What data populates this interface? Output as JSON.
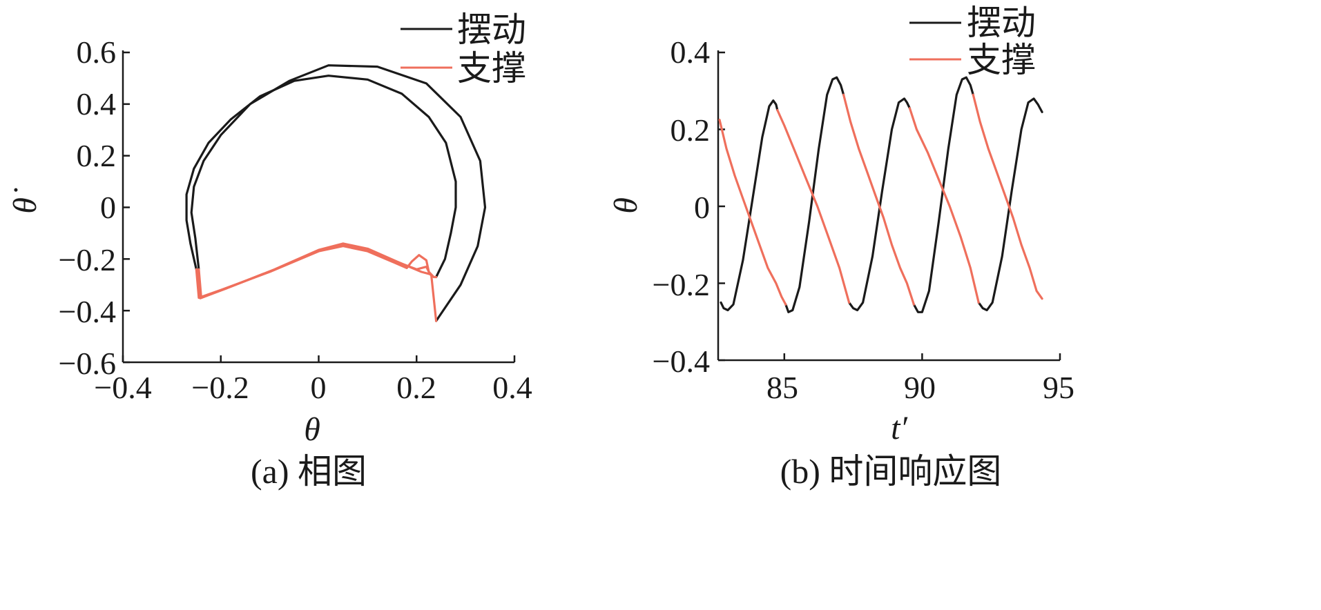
{
  "figure": {
    "captions": [
      "(a) 相图",
      "(b) 时间响应图"
    ]
  },
  "colors": {
    "swing": "#1a1a1a",
    "support": "#ef6f5c",
    "axis": "#1a1a1a"
  },
  "chart_data": [
    {
      "type": "line",
      "subplot": "a",
      "caption": "(a) 相图",
      "xlabel": "θ",
      "ylabel": "θ̇",
      "xlim": [
        -0.4,
        0.4
      ],
      "ylim": [
        -0.6,
        0.6
      ],
      "xticks": [
        -0.4,
        -0.2,
        0,
        0.2,
        0.4
      ],
      "xtick_labels": [
        "−0.4",
        "−0.2",
        "0",
        "0.2",
        "0.4"
      ],
      "yticks": [
        0.6,
        0.4,
        0.2,
        0,
        -0.2,
        -0.4,
        -0.6
      ],
      "ytick_labels": [
        "0.6",
        "0.4",
        "0.2",
        "0",
        "−0.2",
        "−0.4",
        "−0.6"
      ],
      "legend": {
        "position": "top-right",
        "entries": [
          "摆动",
          "支撑"
        ]
      },
      "grid": false,
      "series": [
        {
          "name": "摆动",
          "color": "#1a1a1a",
          "segments": [
            [
              [
                -0.25,
                -0.24
              ],
              [
                -0.262,
                -0.14
              ],
              [
                -0.27,
                -0.05
              ],
              [
                -0.27,
                0.05
              ],
              [
                -0.255,
                0.15
              ],
              [
                -0.225,
                0.25
              ],
              [
                -0.18,
                0.34
              ],
              [
                -0.12,
                0.43
              ],
              [
                -0.05,
                0.49
              ],
              [
                0.02,
                0.51
              ],
              [
                0.1,
                0.495
              ],
              [
                0.17,
                0.44
              ],
              [
                0.225,
                0.35
              ],
              [
                0.26,
                0.25
              ],
              [
                0.28,
                0.1
              ],
              [
                0.28,
                0.0
              ],
              [
                0.27,
                -0.1
              ],
              [
                0.258,
                -0.2
              ],
              [
                0.24,
                -0.27
              ]
            ],
            [
              [
                -0.245,
                -0.24
              ],
              [
                -0.252,
                -0.12
              ],
              [
                -0.26,
                -0.02
              ],
              [
                -0.255,
                0.08
              ],
              [
                -0.235,
                0.18
              ],
              [
                -0.2,
                0.28
              ],
              [
                -0.14,
                0.4
              ],
              [
                -0.06,
                0.49
              ],
              [
                0.02,
                0.55
              ],
              [
                0.12,
                0.545
              ],
              [
                0.22,
                0.48
              ],
              [
                0.29,
                0.35
              ],
              [
                0.33,
                0.18
              ],
              [
                0.34,
                0.0
              ],
              [
                0.325,
                -0.15
              ],
              [
                0.29,
                -0.3
              ],
              [
                0.24,
                -0.44
              ]
            ]
          ]
        },
        {
          "name": "支撑",
          "color": "#ef6f5c",
          "segments": [
            [
              [
                -0.25,
                -0.24
              ],
              [
                -0.245,
                -0.35
              ],
              [
                -0.2,
                -0.32
              ],
              [
                -0.1,
                -0.25
              ],
              [
                0.0,
                -0.17
              ],
              [
                0.05,
                -0.15
              ],
              [
                0.1,
                -0.17
              ],
              [
                0.15,
                -0.21
              ],
              [
                0.18,
                -0.235
              ],
              [
                0.19,
                -0.21
              ],
              [
                0.205,
                -0.185
              ],
              [
                0.22,
                -0.205
              ],
              [
                0.225,
                -0.25
              ],
              [
                0.235,
                -0.27
              ],
              [
                0.24,
                -0.27
              ]
            ],
            [
              [
                -0.245,
                -0.24
              ],
              [
                -0.24,
                -0.35
              ],
              [
                -0.19,
                -0.315
              ],
              [
                -0.09,
                -0.24
              ],
              [
                0.0,
                -0.165
              ],
              [
                0.05,
                -0.14
              ],
              [
                0.1,
                -0.16
              ],
              [
                0.16,
                -0.21
              ],
              [
                0.21,
                -0.25
              ],
              [
                0.23,
                -0.26
              ],
              [
                0.24,
                -0.44
              ]
            ],
            [
              [
                -0.248,
                -0.242
              ],
              [
                -0.242,
                -0.352
              ],
              [
                -0.195,
                -0.318
              ],
              [
                -0.095,
                -0.245
              ],
              [
                0.0,
                -0.168
              ],
              [
                0.05,
                -0.145
              ],
              [
                0.1,
                -0.165
              ],
              [
                0.155,
                -0.208
              ],
              [
                0.2,
                -0.24
              ],
              [
                0.22,
                -0.23
              ],
              [
                0.228,
                -0.26
              ]
            ]
          ]
        }
      ]
    },
    {
      "type": "line",
      "subplot": "b",
      "caption": "(b) 时间响应图",
      "xlabel": "t′",
      "ylabel": "θ",
      "xlim": [
        82.6,
        95
      ],
      "ylim": [
        -0.4,
        0.4
      ],
      "xticks": [
        85,
        90,
        95
      ],
      "xtick_labels": [
        "85",
        "90",
        "95"
      ],
      "yticks": [
        0.4,
        0.2,
        0,
        -0.2,
        -0.4
      ],
      "ytick_labels": [
        "0.4",
        "0.2",
        "0",
        "−0.2",
        "−0.4"
      ],
      "legend": {
        "position": "top-right",
        "entries": [
          "摆动",
          "支撑"
        ]
      },
      "grid": false,
      "series": [
        {
          "name": "摆动",
          "color": "#1a1a1a",
          "segments": [
            [
              [
                82.7,
                -0.25
              ],
              [
                82.8,
                -0.265
              ],
              [
                82.95,
                -0.27
              ],
              [
                83.15,
                -0.255
              ],
              [
                83.5,
                -0.14
              ],
              [
                83.85,
                0.02
              ],
              [
                84.2,
                0.18
              ],
              [
                84.45,
                0.26
              ],
              [
                84.6,
                0.275
              ],
              [
                84.7,
                0.265
              ],
              [
                84.75,
                0.25
              ]
            ],
            [
              [
                85.05,
                -0.255
              ],
              [
                85.15,
                -0.275
              ],
              [
                85.3,
                -0.27
              ],
              [
                85.55,
                -0.21
              ],
              [
                85.9,
                -0.04
              ],
              [
                86.25,
                0.15
              ],
              [
                86.55,
                0.29
              ],
              [
                86.75,
                0.33
              ],
              [
                86.9,
                0.335
              ],
              [
                87.05,
                0.315
              ],
              [
                87.15,
                0.29
              ]
            ],
            [
              [
                87.35,
                -0.25
              ],
              [
                87.5,
                -0.265
              ],
              [
                87.65,
                -0.27
              ],
              [
                87.85,
                -0.25
              ],
              [
                88.2,
                -0.13
              ],
              [
                88.55,
                0.04
              ],
              [
                88.9,
                0.2
              ],
              [
                89.15,
                0.27
              ],
              [
                89.35,
                0.28
              ],
              [
                89.45,
                0.27
              ],
              [
                89.55,
                0.255
              ]
            ],
            [
              [
                89.7,
                -0.255
              ],
              [
                89.85,
                -0.275
              ],
              [
                90.0,
                -0.275
              ],
              [
                90.25,
                -0.22
              ],
              [
                90.6,
                -0.04
              ],
              [
                90.95,
                0.15
              ],
              [
                91.25,
                0.29
              ],
              [
                91.45,
                0.33
              ],
              [
                91.6,
                0.335
              ],
              [
                91.75,
                0.315
              ],
              [
                91.85,
                0.29
              ]
            ],
            [
              [
                92.05,
                -0.25
              ],
              [
                92.2,
                -0.265
              ],
              [
                92.35,
                -0.27
              ],
              [
                92.55,
                -0.25
              ],
              [
                92.9,
                -0.13
              ],
              [
                93.25,
                0.04
              ],
              [
                93.6,
                0.2
              ],
              [
                93.85,
                0.27
              ],
              [
                94.05,
                0.28
              ],
              [
                94.2,
                0.265
              ],
              [
                94.35,
                0.245
              ]
            ]
          ]
        },
        {
          "name": "支撑",
          "color": "#ef6f5c",
          "segments": [
            [
              [
                82.65,
                0.225
              ],
              [
                82.9,
                0.15
              ],
              [
                83.2,
                0.08
              ],
              [
                83.5,
                0.02
              ],
              [
                83.8,
                -0.04
              ],
              [
                84.1,
                -0.1
              ],
              [
                84.4,
                -0.16
              ],
              [
                84.7,
                -0.2
              ],
              [
                84.9,
                -0.235
              ],
              [
                85.05,
                -0.255
              ]
            ],
            [
              [
                84.75,
                0.25
              ],
              [
                85.0,
                0.21
              ],
              [
                85.4,
                0.14
              ],
              [
                85.8,
                0.07
              ],
              [
                86.2,
                0.0
              ],
              [
                86.6,
                -0.08
              ],
              [
                87.0,
                -0.16
              ],
              [
                87.35,
                -0.25
              ]
            ],
            [
              [
                87.15,
                0.29
              ],
              [
                87.4,
                0.22
              ],
              [
                87.7,
                0.15
              ],
              [
                88.0,
                0.09
              ],
              [
                88.3,
                0.03
              ],
              [
                88.6,
                -0.03
              ],
              [
                88.9,
                -0.1
              ],
              [
                89.2,
                -0.16
              ],
              [
                89.45,
                -0.2
              ],
              [
                89.7,
                -0.255
              ]
            ],
            [
              [
                89.55,
                0.255
              ],
              [
                89.8,
                0.2
              ],
              [
                90.2,
                0.14
              ],
              [
                90.6,
                0.07
              ],
              [
                91.0,
                0.0
              ],
              [
                91.4,
                -0.08
              ],
              [
                91.75,
                -0.16
              ],
              [
                92.05,
                -0.25
              ]
            ],
            [
              [
                91.85,
                0.29
              ],
              [
                92.1,
                0.22
              ],
              [
                92.4,
                0.15
              ],
              [
                92.7,
                0.09
              ],
              [
                93.0,
                0.03
              ],
              [
                93.3,
                -0.03
              ],
              [
                93.6,
                -0.1
              ],
              [
                93.9,
                -0.16
              ],
              [
                94.15,
                -0.22
              ],
              [
                94.35,
                -0.24
              ]
            ]
          ]
        }
      ]
    }
  ]
}
